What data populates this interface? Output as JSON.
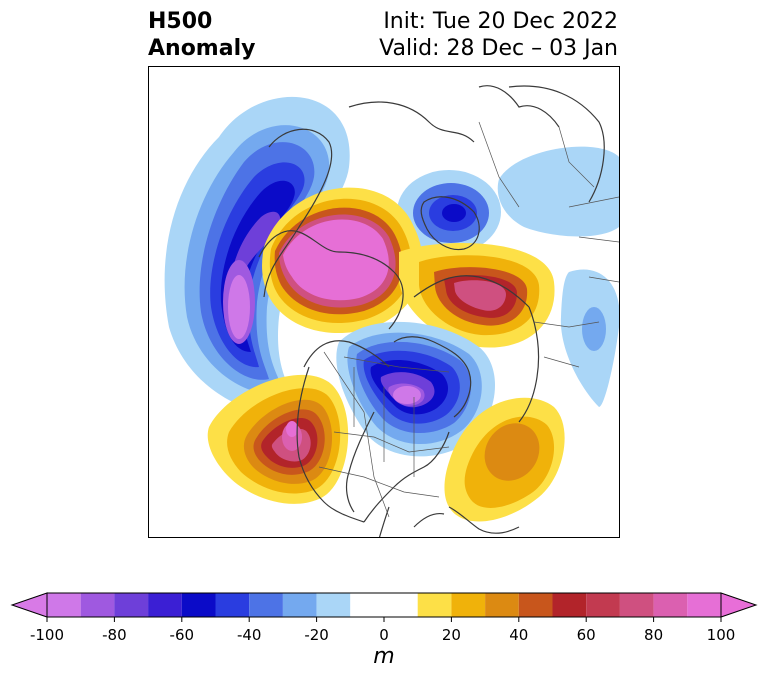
{
  "title": {
    "left_line1": "H500",
    "left_line2": "Anomaly",
    "right_line1": "Init: Tue 20 Dec 2022",
    "right_line2": "Valid: 28 Dec – 03 Jan"
  },
  "colorbar": {
    "unit": "m",
    "ticks": [
      "-100",
      "-80",
      "-60",
      "-40",
      "-20",
      "0",
      "20",
      "40",
      "60",
      "80",
      "100"
    ],
    "tick_values": [
      -100,
      -80,
      -60,
      -40,
      -20,
      0,
      20,
      40,
      60,
      80,
      100
    ],
    "range": [
      -100,
      100
    ],
    "extend": "both",
    "bins": [
      {
        "from": -100,
        "to": -90,
        "color": "#cf78e8"
      },
      {
        "from": -90,
        "to": -80,
        "color": "#9f59e0"
      },
      {
        "from": -80,
        "to": -70,
        "color": "#6e3fd9"
      },
      {
        "from": -70,
        "to": -60,
        "color": "#3b1fd4"
      },
      {
        "from": -60,
        "to": -50,
        "color": "#0b0bc8"
      },
      {
        "from": -50,
        "to": -40,
        "color": "#2a3de0"
      },
      {
        "from": -40,
        "to": -30,
        "color": "#4d73e6"
      },
      {
        "from": -30,
        "to": -20,
        "color": "#74a9ef"
      },
      {
        "from": -20,
        "to": -10,
        "color": "#aad6f7"
      },
      {
        "from": -10,
        "to": 10,
        "color": "#ffffff"
      },
      {
        "from": 10,
        "to": 20,
        "color": "#fde047"
      },
      {
        "from": 20,
        "to": 30,
        "color": "#f0b20a"
      },
      {
        "from": 30,
        "to": 40,
        "color": "#dc8a12"
      },
      {
        "from": 40,
        "to": 50,
        "color": "#c8561c"
      },
      {
        "from": 50,
        "to": 60,
        "color": "#b2242a"
      },
      {
        "from": 60,
        "to": 70,
        "color": "#c23a50"
      },
      {
        "from": 70,
        "to": 80,
        "color": "#cf5080"
      },
      {
        "from": 80,
        "to": 90,
        "color": "#db60b0"
      },
      {
        "from": 90,
        "to": 100,
        "color": "#e66fd6"
      }
    ],
    "under_color": "#d87ae6",
    "over_color": "#e86ed8"
  },
  "map": {
    "projection": "polar-stereographic",
    "region": "North America and Arctic",
    "coastline_color": "#3a3a3a",
    "anomaly_centers": [
      {
        "type": "negative",
        "region": "Gulf of Alaska / NE Pacific",
        "value": -100
      },
      {
        "type": "positive",
        "region": "Alaska / Arctic Canada",
        "value": 100
      },
      {
        "type": "negative",
        "region": "Greenland",
        "value": -60
      },
      {
        "type": "positive",
        "region": "Baffin Bay / Labrador",
        "value": 90
      },
      {
        "type": "negative",
        "region": "Siberia",
        "value": -30
      },
      {
        "type": "negative",
        "region": "Central Canada",
        "value": -100
      },
      {
        "type": "positive",
        "region": "Western United States",
        "value": 90
      },
      {
        "type": "positive",
        "region": "Western Atlantic",
        "value": 40
      }
    ]
  }
}
